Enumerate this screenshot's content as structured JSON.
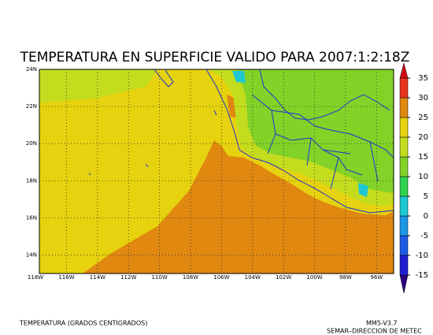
{
  "chart_data": {
    "type": "contour-map",
    "title": "TEMPERATURA EN SUPERFICIE VALIDO PARA 2007:1:2:18Z",
    "xlim": [
      -117.75,
      -94.9
    ],
    "ylim": [
      13,
      24
    ],
    "xticks": [
      {
        "value": -118,
        "label": "118W"
      },
      {
        "value": -116,
        "label": "116W"
      },
      {
        "value": -114,
        "label": "114W"
      },
      {
        "value": -112,
        "label": "112W"
      },
      {
        "value": -110,
        "label": "110W"
      },
      {
        "value": -108,
        "label": "108W"
      },
      {
        "value": -106,
        "label": "106W"
      },
      {
        "value": -104,
        "label": "104W"
      },
      {
        "value": -102,
        "label": "102W"
      },
      {
        "value": -100,
        "label": "100W"
      },
      {
        "value": -98,
        "label": "98W"
      },
      {
        "value": -96,
        "label": "96W"
      }
    ],
    "yticks": [
      {
        "value": 24,
        "label": "24N"
      },
      {
        "value": 22,
        "label": "22N"
      },
      {
        "value": 20,
        "label": "20N"
      },
      {
        "value": 18,
        "label": "18N"
      },
      {
        "value": 16,
        "label": "16N"
      },
      {
        "value": 14,
        "label": "14N"
      }
    ],
    "grid": true,
    "colorbar": {
      "levels": [
        -15,
        -10,
        -5,
        0,
        5,
        10,
        15,
        20,
        25,
        30,
        35
      ],
      "colors": [
        "#2b0080",
        "#1e1ed2",
        "#1e5ae6",
        "#1e96e6",
        "#1ec8d2",
        "#32d250",
        "#82d228",
        "#c3dc1e",
        "#e6d20f",
        "#e0880f",
        "#e8321e",
        "#d20a14"
      ]
    },
    "footer_left": "TEMPERATURA (GRADOS CENTIGRADOS)",
    "footer_right": [
      "MM5-V3.7",
      "SEMAR–DIRECCION DE METEC"
    ]
  }
}
